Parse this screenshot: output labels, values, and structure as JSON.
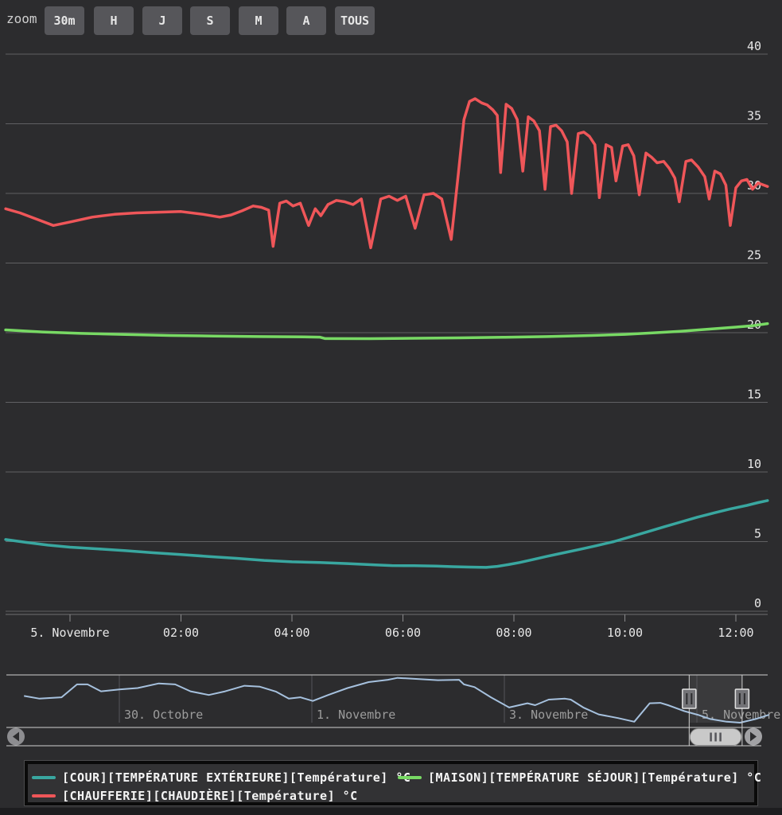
{
  "toolbar": {
    "zoom_label": "zoom",
    "range_buttons": [
      "30m",
      "H",
      "J",
      "S",
      "M",
      "A",
      "TOUS"
    ]
  },
  "colors": {
    "background": "#2c2c2e",
    "gridline": "#606063",
    "axis_line": "#707072",
    "axis_text": "#e8e8e8",
    "nav_text": "#9c9c9c",
    "outline": "#d0d0d0",
    "button_bg": "#56565a",
    "button_text": "#e6e6e6",
    "series_outdoor": "#39a7a0",
    "series_living": "#78d964",
    "series_boiler": "#ef5659",
    "navigator_line": "#a6c1de"
  },
  "legend": {
    "items": [
      {
        "id": "outdoor-temperature",
        "label": "[COUR][TEMPÉRATURE EXTÉRIEURE][Température] °C",
        "color": "#39a7a0"
      },
      {
        "id": "living-room-temperature",
        "label": "[MAISON][TEMPÉRATURE SÉJOUR][Température] °C",
        "color": "#78d964"
      },
      {
        "id": "boiler-temperature",
        "label": "[CHAUFFERIE][CHAUDIÈRE][Température] °C",
        "color": "#ef5659"
      }
    ]
  },
  "chart_data": {
    "type": "line",
    "title": "",
    "x_axis": {
      "unit": "hours since 5. Novembre 00:00",
      "tick_labels": [
        "5. Novembre",
        "02:00",
        "04:00",
        "06:00",
        "08:00",
        "10:00",
        "12:00"
      ],
      "tick_hours": [
        0,
        2,
        4,
        6,
        8,
        10,
        12
      ],
      "range_hours": [
        -1.16,
        12.57
      ]
    },
    "y_axis": {
      "unit": "°C",
      "ticks": [
        0,
        5,
        10,
        15,
        20,
        25,
        30,
        35,
        40
      ],
      "range": [
        0,
        40
      ],
      "grid": true,
      "labels_side": "right"
    },
    "series": [
      {
        "id": "outdoor-temperature",
        "name": "[COUR][TEMPÉRATURE EXTÉRIEURE][Température] °C",
        "color": "#39a7a0",
        "points": [
          [
            -1.16,
            5.15
          ],
          [
            -0.8,
            4.95
          ],
          [
            -0.4,
            4.75
          ],
          [
            0,
            4.6
          ],
          [
            0.5,
            4.48
          ],
          [
            1,
            4.35
          ],
          [
            1.5,
            4.2
          ],
          [
            2,
            4.07
          ],
          [
            2.5,
            3.93
          ],
          [
            3,
            3.8
          ],
          [
            3.5,
            3.65
          ],
          [
            4,
            3.55
          ],
          [
            4.5,
            3.5
          ],
          [
            5,
            3.42
          ],
          [
            5.5,
            3.33
          ],
          [
            5.8,
            3.28
          ],
          [
            6.2,
            3.27
          ],
          [
            6.6,
            3.24
          ],
          [
            6.9,
            3.2
          ],
          [
            7.2,
            3.17
          ],
          [
            7.5,
            3.15
          ],
          [
            7.7,
            3.22
          ],
          [
            7.9,
            3.35
          ],
          [
            8.1,
            3.5
          ],
          [
            8.35,
            3.72
          ],
          [
            8.6,
            3.95
          ],
          [
            8.9,
            4.2
          ],
          [
            9.2,
            4.45
          ],
          [
            9.5,
            4.72
          ],
          [
            9.8,
            5.0
          ],
          [
            10.1,
            5.35
          ],
          [
            10.4,
            5.7
          ],
          [
            10.7,
            6.05
          ],
          [
            11,
            6.4
          ],
          [
            11.3,
            6.75
          ],
          [
            11.6,
            7.05
          ],
          [
            11.9,
            7.35
          ],
          [
            12.2,
            7.6
          ],
          [
            12.4,
            7.8
          ],
          [
            12.57,
            7.95
          ]
        ]
      },
      {
        "id": "living-room-temperature",
        "name": "[MAISON][TEMPÉRATURE SÉJOUR][Température] °C",
        "color": "#78d964",
        "points": [
          [
            -1.16,
            20.2
          ],
          [
            -0.5,
            20.05
          ],
          [
            0.2,
            19.95
          ],
          [
            1,
            19.87
          ],
          [
            1.8,
            19.8
          ],
          [
            2.6,
            19.76
          ],
          [
            3.4,
            19.72
          ],
          [
            4.2,
            19.7
          ],
          [
            4.5,
            19.68
          ],
          [
            4.6,
            19.58
          ],
          [
            5.4,
            19.57
          ],
          [
            6.2,
            19.6
          ],
          [
            7,
            19.63
          ],
          [
            7.8,
            19.67
          ],
          [
            8.6,
            19.72
          ],
          [
            9.4,
            19.8
          ],
          [
            10,
            19.88
          ],
          [
            10.5,
            19.98
          ],
          [
            11,
            20.1
          ],
          [
            11.5,
            20.25
          ],
          [
            12,
            20.4
          ],
          [
            12.3,
            20.5
          ],
          [
            12.57,
            20.65
          ]
        ]
      },
      {
        "id": "boiler-temperature",
        "name": "[CHAUFFERIE][CHAUDIÈRE][Température] °C",
        "color": "#ef5659",
        "points": [
          [
            -1.16,
            28.9
          ],
          [
            -0.9,
            28.6
          ],
          [
            -0.6,
            28.15
          ],
          [
            -0.3,
            27.7
          ],
          [
            0.0,
            27.95
          ],
          [
            0.4,
            28.3
          ],
          [
            0.8,
            28.5
          ],
          [
            1.2,
            28.6
          ],
          [
            1.6,
            28.65
          ],
          [
            2.0,
            28.7
          ],
          [
            2.4,
            28.5
          ],
          [
            2.7,
            28.3
          ],
          [
            2.9,
            28.45
          ],
          [
            3.1,
            28.75
          ],
          [
            3.3,
            29.1
          ],
          [
            3.45,
            29.0
          ],
          [
            3.58,
            28.8
          ],
          [
            3.66,
            26.2
          ],
          [
            3.78,
            29.3
          ],
          [
            3.9,
            29.45
          ],
          [
            4.02,
            29.1
          ],
          [
            4.15,
            29.3
          ],
          [
            4.3,
            27.7
          ],
          [
            4.42,
            28.9
          ],
          [
            4.52,
            28.4
          ],
          [
            4.65,
            29.2
          ],
          [
            4.8,
            29.5
          ],
          [
            4.95,
            29.4
          ],
          [
            5.1,
            29.2
          ],
          [
            5.25,
            29.6
          ],
          [
            5.42,
            26.1
          ],
          [
            5.6,
            29.6
          ],
          [
            5.75,
            29.8
          ],
          [
            5.9,
            29.5
          ],
          [
            6.05,
            29.8
          ],
          [
            6.22,
            27.5
          ],
          [
            6.38,
            29.9
          ],
          [
            6.55,
            30.0
          ],
          [
            6.7,
            29.6
          ],
          [
            6.87,
            26.7
          ],
          [
            7.0,
            31.5
          ],
          [
            7.1,
            35.3
          ],
          [
            7.2,
            36.6
          ],
          [
            7.3,
            36.8
          ],
          [
            7.42,
            36.5
          ],
          [
            7.52,
            36.35
          ],
          [
            7.62,
            36.0
          ],
          [
            7.7,
            35.6
          ],
          [
            7.76,
            31.5
          ],
          [
            7.86,
            36.4
          ],
          [
            7.96,
            36.1
          ],
          [
            8.06,
            35.3
          ],
          [
            8.16,
            31.6
          ],
          [
            8.26,
            35.5
          ],
          [
            8.36,
            35.2
          ],
          [
            8.46,
            34.5
          ],
          [
            8.56,
            30.3
          ],
          [
            8.66,
            34.8
          ],
          [
            8.76,
            34.9
          ],
          [
            8.86,
            34.5
          ],
          [
            8.96,
            33.7
          ],
          [
            9.04,
            30.0
          ],
          [
            9.16,
            34.3
          ],
          [
            9.26,
            34.4
          ],
          [
            9.36,
            34.1
          ],
          [
            9.46,
            33.5
          ],
          [
            9.54,
            29.7
          ],
          [
            9.66,
            33.5
          ],
          [
            9.76,
            33.3
          ],
          [
            9.84,
            30.9
          ],
          [
            9.96,
            33.4
          ],
          [
            10.06,
            33.5
          ],
          [
            10.16,
            32.7
          ],
          [
            10.26,
            29.9
          ],
          [
            10.38,
            32.9
          ],
          [
            10.48,
            32.6
          ],
          [
            10.58,
            32.2
          ],
          [
            10.7,
            32.3
          ],
          [
            10.8,
            31.8
          ],
          [
            10.9,
            31.1
          ],
          [
            10.98,
            29.4
          ],
          [
            11.1,
            32.3
          ],
          [
            11.2,
            32.4
          ],
          [
            11.32,
            31.9
          ],
          [
            11.44,
            31.2
          ],
          [
            11.52,
            29.6
          ],
          [
            11.62,
            31.6
          ],
          [
            11.72,
            31.4
          ],
          [
            11.82,
            30.6
          ],
          [
            11.9,
            27.7
          ],
          [
            12.0,
            30.4
          ],
          [
            12.1,
            30.9
          ],
          [
            12.2,
            31.0
          ],
          [
            12.3,
            30.3
          ],
          [
            12.4,
            30.75
          ],
          [
            12.5,
            30.6
          ],
          [
            12.57,
            30.5
          ]
        ]
      }
    ],
    "navigator": {
      "unit_x": "days since 28. Octobre 00:00",
      "tick_labels": [
        "30. Octobre",
        "1. Novembre",
        "3. Novembre",
        "5. Novembre"
      ],
      "tick_days": [
        2,
        4,
        6,
        8
      ],
      "selected_range_days": [
        7.92,
        8.47
      ],
      "line_color": "#a6c1de",
      "points": [
        [
          1.01,
          0.58
        ],
        [
          1.17,
          0.52
        ],
        [
          1.4,
          0.55
        ],
        [
          1.56,
          0.83
        ],
        [
          1.67,
          0.83
        ],
        [
          1.81,
          0.68
        ],
        [
          2.0,
          0.72
        ],
        [
          2.19,
          0.75
        ],
        [
          2.41,
          0.85
        ],
        [
          2.58,
          0.83
        ],
        [
          2.74,
          0.68
        ],
        [
          2.93,
          0.6
        ],
        [
          3.1,
          0.68
        ],
        [
          3.3,
          0.8
        ],
        [
          3.46,
          0.78
        ],
        [
          3.63,
          0.67
        ],
        [
          3.76,
          0.52
        ],
        [
          3.88,
          0.55
        ],
        [
          4.01,
          0.47
        ],
        [
          4.17,
          0.6
        ],
        [
          4.37,
          0.75
        ],
        [
          4.59,
          0.88
        ],
        [
          4.79,
          0.93
        ],
        [
          4.89,
          0.97
        ],
        [
          5.31,
          0.92
        ],
        [
          5.53,
          0.93
        ],
        [
          5.58,
          0.83
        ],
        [
          5.69,
          0.77
        ],
        [
          5.86,
          0.55
        ],
        [
          6.05,
          0.33
        ],
        [
          6.24,
          0.42
        ],
        [
          6.32,
          0.38
        ],
        [
          6.46,
          0.5
        ],
        [
          6.63,
          0.52
        ],
        [
          6.69,
          0.5
        ],
        [
          6.82,
          0.33
        ],
        [
          6.98,
          0.18
        ],
        [
          7.18,
          0.1
        ],
        [
          7.35,
          0.02
        ],
        [
          7.51,
          0.42
        ],
        [
          7.62,
          0.43
        ],
        [
          7.7,
          0.38
        ],
        [
          7.87,
          0.25
        ],
        [
          8.01,
          0.17
        ],
        [
          8.14,
          0.08
        ],
        [
          8.31,
          0.02
        ],
        [
          8.45,
          0.0
        ],
        [
          8.61,
          0.08
        ],
        [
          8.75,
          0.17
        ]
      ]
    }
  }
}
